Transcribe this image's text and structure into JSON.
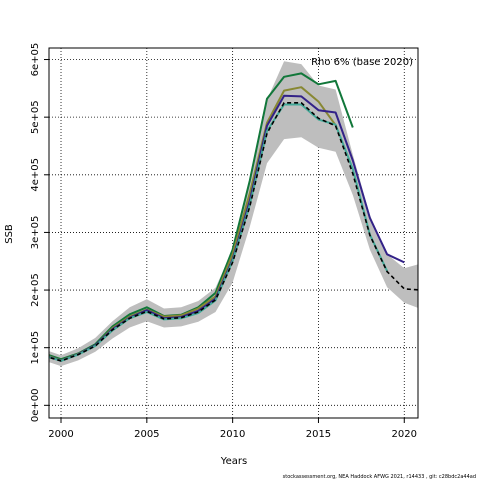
{
  "chart_data": {
    "type": "line",
    "annotation": "Rho 6% (base 2020)",
    "xlabel": "Years",
    "ylabel": "SSB",
    "footer": "stockassessment.org, NEA Haddock AFWG 2021, r14433 , git: c28bdc2a44ad",
    "xlim": [
      1999.3,
      2020.8
    ],
    "ylim": [
      -22000,
      620000
    ],
    "x_ticks": [
      2000,
      2005,
      2010,
      2015,
      2020
    ],
    "x_tick_labels": [
      "2000",
      "2005",
      "2010",
      "2015",
      "2020"
    ],
    "y_ticks": [
      0,
      100000,
      200000,
      300000,
      400000,
      500000,
      600000
    ],
    "y_tick_labels": [
      "0e+00",
      "1e+05",
      "2e+05",
      "3e+05",
      "4e+05",
      "5e+05",
      "6e+05"
    ],
    "grid": true,
    "base": {
      "name": "base 2020",
      "color": "#000000",
      "x": [
        1999,
        2000,
        2001,
        2002,
        2003,
        2004,
        2005,
        2006,
        2007,
        2008,
        2009,
        2010,
        2011,
        2012,
        2013,
        2014,
        2015,
        2016,
        2017,
        2018,
        2019,
        2020,
        2021
      ],
      "values": [
        86000,
        77000,
        88000,
        103000,
        131000,
        151000,
        163000,
        150000,
        152000,
        162000,
        183000,
        248000,
        345000,
        472000,
        525000,
        525000,
        498000,
        485000,
        402000,
        295000,
        232000,
        202000,
        200000
      ],
      "ci_lower": [
        78000,
        68000,
        78000,
        93000,
        116000,
        135000,
        146000,
        135000,
        137000,
        145000,
        162000,
        213000,
        310000,
        420000,
        462000,
        465000,
        447000,
        440000,
        365000,
        270000,
        205000,
        178000,
        167000
      ],
      "ci_upper": [
        97000,
        87000,
        99000,
        117000,
        146000,
        170000,
        184000,
        168000,
        170000,
        181000,
        204000,
        270000,
        385000,
        530000,
        597000,
        592000,
        555000,
        548000,
        435000,
        330000,
        262000,
        238000,
        246000
      ]
    },
    "series": [
      {
        "color": "#11773a",
        "x": [
          1999,
          2000,
          2001,
          2002,
          2003,
          2004,
          2005,
          2006,
          2007,
          2008,
          2009,
          2010,
          2011,
          2012,
          2013,
          2014,
          2015,
          2016,
          2017
        ],
        "values": [
          90000,
          80000,
          90000,
          106000,
          137000,
          158000,
          170000,
          155000,
          157000,
          170000,
          195000,
          270000,
          390000,
          532000,
          570000,
          576000,
          557000,
          563000,
          482000
        ]
      },
      {
        "color": "#888833",
        "x": [
          1999,
          2000,
          2001,
          2002,
          2003,
          2004,
          2005,
          2006,
          2007,
          2008,
          2009,
          2010,
          2011,
          2012,
          2013,
          2014,
          2015,
          2016
        ],
        "values": [
          88000,
          78000,
          89000,
          104000,
          134000,
          154000,
          166000,
          154000,
          156000,
          168000,
          189000,
          262000,
          368000,
          490000,
          546000,
          552000,
          527000,
          486000
        ]
      },
      {
        "color": "#332288",
        "x": [
          1999,
          2000,
          2001,
          2002,
          2003,
          2004,
          2005,
          2006,
          2007,
          2008,
          2009,
          2010,
          2011,
          2012,
          2013,
          2014,
          2015,
          2016,
          2017,
          2018,
          2019,
          2020
        ],
        "values": [
          87000,
          77500,
          88500,
          104000,
          132000,
          152000,
          165000,
          151000,
          153000,
          164000,
          185000,
          253000,
          355000,
          485000,
          537000,
          536000,
          512000,
          508000,
          425000,
          325000,
          262000,
          248000
        ]
      },
      {
        "color": "#44aa99",
        "x": [
          1999,
          2000,
          2001,
          2002,
          2003,
          2004,
          2005,
          2006,
          2007,
          2008,
          2009,
          2010,
          2011,
          2012,
          2013,
          2014,
          2015,
          2016,
          2017,
          2018,
          2019
        ],
        "values": [
          86500,
          77000,
          88000,
          103000,
          130000,
          151000,
          162000,
          149000,
          151000,
          160000,
          182000,
          250000,
          348000,
          476000,
          522000,
          522000,
          496000,
          487000,
          410000,
          296000,
          233000
        ]
      }
    ]
  }
}
